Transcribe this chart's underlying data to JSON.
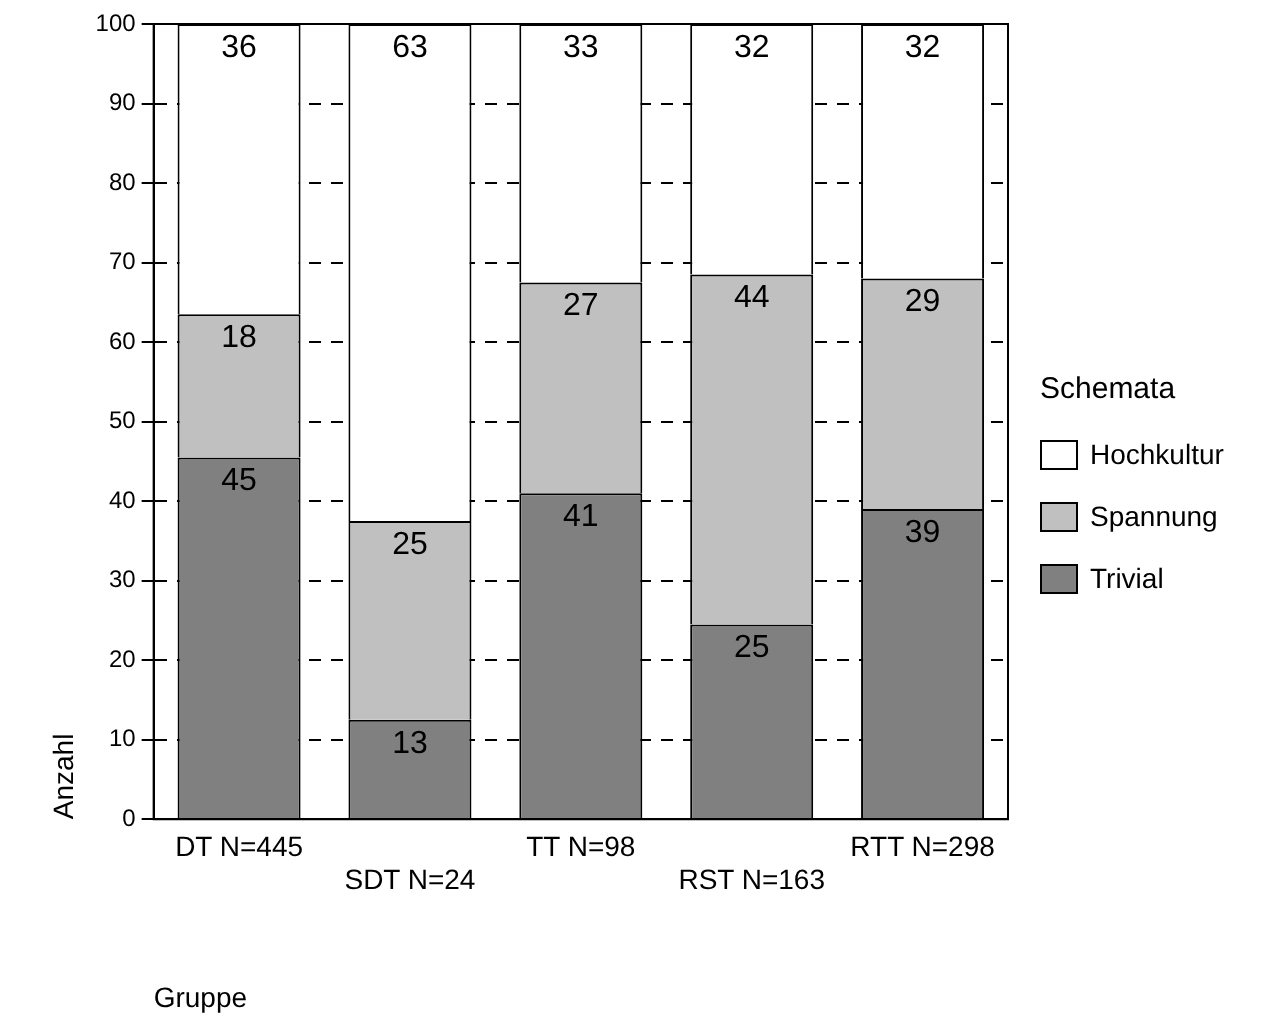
{
  "chart_data": {
    "type": "bar",
    "stacked": true,
    "xlabel": "Gruppe",
    "ylabel": "Anzahl",
    "legend_title": "Schemata",
    "legend": "right",
    "grid": "y",
    "line_style": "dashed",
    "categories": [
      "DT N=445",
      "SDT N=24",
      "TT N=98",
      "RST N=163",
      "RTT N=298"
    ],
    "ylim": [
      0,
      100
    ],
    "yticks": [
      0,
      10,
      20,
      30,
      40,
      50,
      60,
      70,
      80,
      90,
      100
    ],
    "series": [
      {
        "name": "Trivial",
        "color": "#808080",
        "values": [
          45.5,
          12.5,
          41,
          24.5,
          39
        ],
        "value_labels": [
          "45",
          "13",
          "41",
          "25",
          "39"
        ]
      },
      {
        "name": "Spannung",
        "color": "#c0c0c0",
        "values": [
          18,
          25,
          26.5,
          44,
          29
        ],
        "value_labels": [
          "18",
          "25",
          "27",
          "44",
          "29"
        ]
      },
      {
        "name": "Hochkultur",
        "color": "#ffffff",
        "values": [
          36.5,
          62.5,
          32.5,
          31.5,
          32
        ],
        "value_labels": [
          "36",
          "63",
          "33",
          "32",
          "32"
        ]
      }
    ]
  }
}
